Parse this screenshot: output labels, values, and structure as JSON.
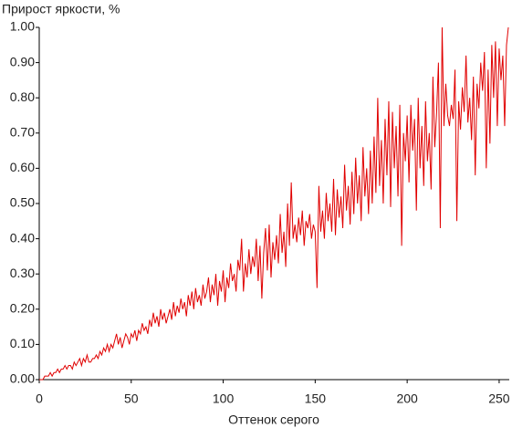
{
  "chart_data": {
    "type": "line",
    "title": "Прирост яркости, %",
    "xlabel": "Оттенок серого",
    "x": [
      0,
      1,
      2,
      3,
      4,
      5,
      6,
      7,
      8,
      9,
      10,
      11,
      12,
      13,
      14,
      15,
      16,
      17,
      18,
      19,
      20,
      21,
      22,
      23,
      24,
      25,
      26,
      27,
      28,
      29,
      30,
      31,
      32,
      33,
      34,
      35,
      36,
      37,
      38,
      39,
      40,
      41,
      42,
      43,
      44,
      45,
      46,
      47,
      48,
      49,
      50,
      51,
      52,
      53,
      54,
      55,
      56,
      57,
      58,
      59,
      60,
      61,
      62,
      63,
      64,
      65,
      66,
      67,
      68,
      69,
      70,
      71,
      72,
      73,
      74,
      75,
      76,
      77,
      78,
      79,
      80,
      81,
      82,
      83,
      84,
      85,
      86,
      87,
      88,
      89,
      90,
      91,
      92,
      93,
      94,
      95,
      96,
      97,
      98,
      99,
      100,
      101,
      102,
      103,
      104,
      105,
      106,
      107,
      108,
      109,
      110,
      111,
      112,
      113,
      114,
      115,
      116,
      117,
      118,
      119,
      120,
      121,
      122,
      123,
      124,
      125,
      126,
      127,
      128,
      129,
      130,
      131,
      132,
      133,
      134,
      135,
      136,
      137,
      138,
      139,
      140,
      141,
      142,
      143,
      144,
      145,
      146,
      147,
      148,
      149,
      150,
      151,
      152,
      153,
      154,
      155,
      156,
      157,
      158,
      159,
      160,
      161,
      162,
      163,
      164,
      165,
      166,
      167,
      168,
      169,
      170,
      171,
      172,
      173,
      174,
      175,
      176,
      177,
      178,
      179,
      180,
      181,
      182,
      183,
      184,
      185,
      186,
      187,
      188,
      189,
      190,
      191,
      192,
      193,
      194,
      195,
      196,
      197,
      198,
      199,
      200,
      201,
      202,
      203,
      204,
      205,
      206,
      207,
      208,
      209,
      210,
      211,
      212,
      213,
      214,
      215,
      216,
      217,
      218,
      219,
      220,
      221,
      222,
      223,
      224,
      225,
      226,
      227,
      228,
      229,
      230,
      231,
      232,
      233,
      234,
      235,
      236,
      237,
      238,
      239,
      240,
      241,
      242,
      243,
      244,
      245,
      246,
      247,
      248,
      249,
      250,
      251,
      252,
      253,
      254,
      255
    ],
    "series": [
      {
        "name": "Прирост яркости",
        "color": "#e00000",
        "values": [
          0.0,
          0.0,
          0.0,
          0.01,
          0.01,
          0.01,
          0.02,
          0.01,
          0.02,
          0.02,
          0.03,
          0.02,
          0.03,
          0.03,
          0.04,
          0.03,
          0.04,
          0.04,
          0.03,
          0.05,
          0.04,
          0.05,
          0.06,
          0.04,
          0.06,
          0.05,
          0.07,
          0.05,
          0.05,
          0.06,
          0.06,
          0.07,
          0.06,
          0.08,
          0.07,
          0.09,
          0.08,
          0.1,
          0.08,
          0.1,
          0.09,
          0.11,
          0.13,
          0.1,
          0.12,
          0.09,
          0.11,
          0.13,
          0.12,
          0.1,
          0.13,
          0.12,
          0.14,
          0.11,
          0.14,
          0.13,
          0.16,
          0.14,
          0.15,
          0.13,
          0.17,
          0.15,
          0.19,
          0.16,
          0.18,
          0.15,
          0.2,
          0.17,
          0.19,
          0.16,
          0.18,
          0.2,
          0.17,
          0.22,
          0.18,
          0.21,
          0.19,
          0.23,
          0.2,
          0.22,
          0.18,
          0.24,
          0.21,
          0.25,
          0.2,
          0.26,
          0.22,
          0.24,
          0.21,
          0.27,
          0.23,
          0.25,
          0.29,
          0.22,
          0.27,
          0.24,
          0.3,
          0.21,
          0.28,
          0.25,
          0.31,
          0.22,
          0.29,
          0.26,
          0.33,
          0.28,
          0.3,
          0.25,
          0.34,
          0.31,
          0.4,
          0.25,
          0.33,
          0.29,
          0.37,
          0.3,
          0.35,
          0.32,
          0.4,
          0.28,
          0.38,
          0.23,
          0.36,
          0.43,
          0.31,
          0.44,
          0.29,
          0.39,
          0.34,
          0.41,
          0.33,
          0.47,
          0.36,
          0.42,
          0.32,
          0.5,
          0.38,
          0.56,
          0.4,
          0.44,
          0.39,
          0.46,
          0.41,
          0.48,
          0.38,
          0.45,
          0.43,
          0.47,
          0.4,
          0.44,
          0.42,
          0.26,
          0.55,
          0.42,
          0.48,
          0.4,
          0.53,
          0.45,
          0.5,
          0.42,
          0.57,
          0.41,
          0.54,
          0.46,
          0.52,
          0.43,
          0.61,
          0.48,
          0.55,
          0.44,
          0.59,
          0.47,
          0.63,
          0.5,
          0.58,
          0.45,
          0.66,
          0.52,
          0.6,
          0.47,
          0.65,
          0.5,
          0.69,
          0.53,
          0.8,
          0.55,
          0.68,
          0.5,
          0.74,
          0.58,
          0.79,
          0.49,
          0.76,
          0.6,
          0.72,
          0.52,
          0.78,
          0.38,
          0.7,
          0.62,
          0.75,
          0.56,
          0.78,
          0.65,
          0.74,
          0.48,
          0.8,
          0.6,
          0.72,
          0.55,
          0.79,
          0.62,
          0.7,
          0.54,
          0.86,
          0.66,
          0.76,
          0.9,
          0.43,
          1.0,
          0.72,
          0.84,
          0.75,
          0.72,
          0.78,
          0.74,
          0.88,
          0.45,
          0.79,
          0.71,
          0.83,
          0.76,
          0.92,
          0.73,
          0.8,
          0.68,
          0.86,
          0.58,
          0.84,
          0.77,
          0.9,
          0.82,
          0.93,
          0.6,
          0.88,
          0.67,
          0.95,
          0.8,
          0.96,
          0.72,
          0.94,
          0.85,
          0.92,
          0.72,
          0.95,
          1.0
        ]
      }
    ],
    "xlim": [
      0,
      255
    ],
    "xticks": [
      0,
      50,
      100,
      150,
      200,
      250
    ],
    "ylim": [
      0,
      1
    ],
    "yticks": [
      {
        "value": 0,
        "label": "0.00"
      },
      {
        "value": 0.1,
        "label": "0.10"
      },
      {
        "value": 0.2,
        "label": "0.20"
      },
      {
        "value": 0.3,
        "label": "0.30"
      },
      {
        "value": 0.4,
        "label": "0.40"
      },
      {
        "value": 0.5,
        "label": "0.50"
      },
      {
        "value": 0.6,
        "label": "0.60"
      },
      {
        "value": 0.7,
        "label": "0.70"
      },
      {
        "value": 0.8,
        "label": "0.80"
      },
      {
        "value": 0.9,
        "label": "0.90"
      },
      {
        "value": 1,
        "label": "1.00"
      }
    ],
    "grid": false
  }
}
